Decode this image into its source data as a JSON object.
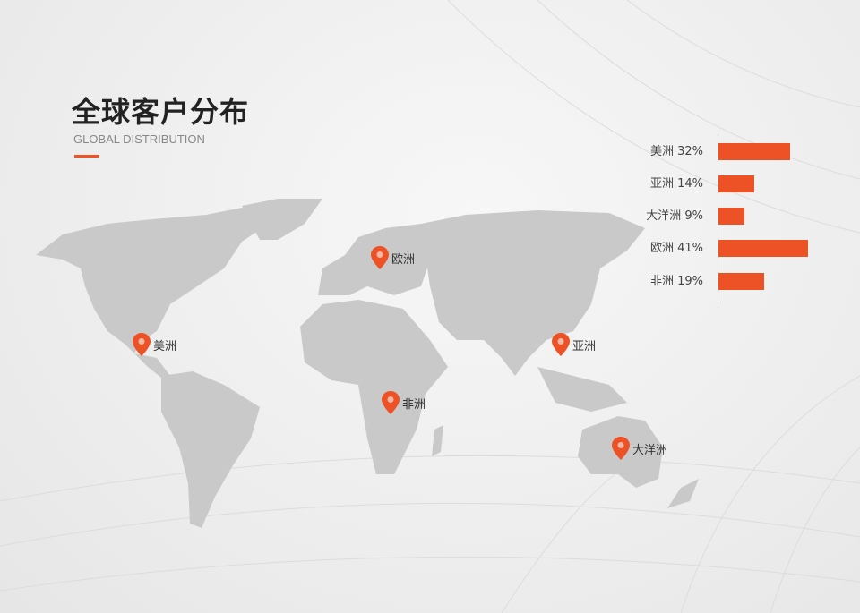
{
  "header": {
    "title": "全球客户分布",
    "subtitle": "GLOBAL DISTRIBUTION"
  },
  "colors": {
    "accent": "#ec5226",
    "land": "#c9c9c9"
  },
  "pins": [
    {
      "label": "美洲",
      "icon": "map-pin-icon"
    },
    {
      "label": "欧洲",
      "icon": "map-pin-icon"
    },
    {
      "label": "非洲",
      "icon": "map-pin-icon"
    },
    {
      "label": "亚洲",
      "icon": "map-pin-icon"
    },
    {
      "label": "大洋洲",
      "icon": "map-pin-icon"
    }
  ],
  "chart_data": {
    "type": "bar",
    "orientation": "horizontal",
    "categories": [
      "美洲",
      "亚洲",
      "大洋洲",
      "欧洲",
      "非洲"
    ],
    "values": [
      32,
      14,
      9,
      41,
      19
    ],
    "labels": [
      "美洲 32%",
      "亚洲 14%",
      "大洋洲 9%",
      "欧洲 41%",
      "非洲 19%"
    ],
    "unit": "%",
    "grid": false
  }
}
